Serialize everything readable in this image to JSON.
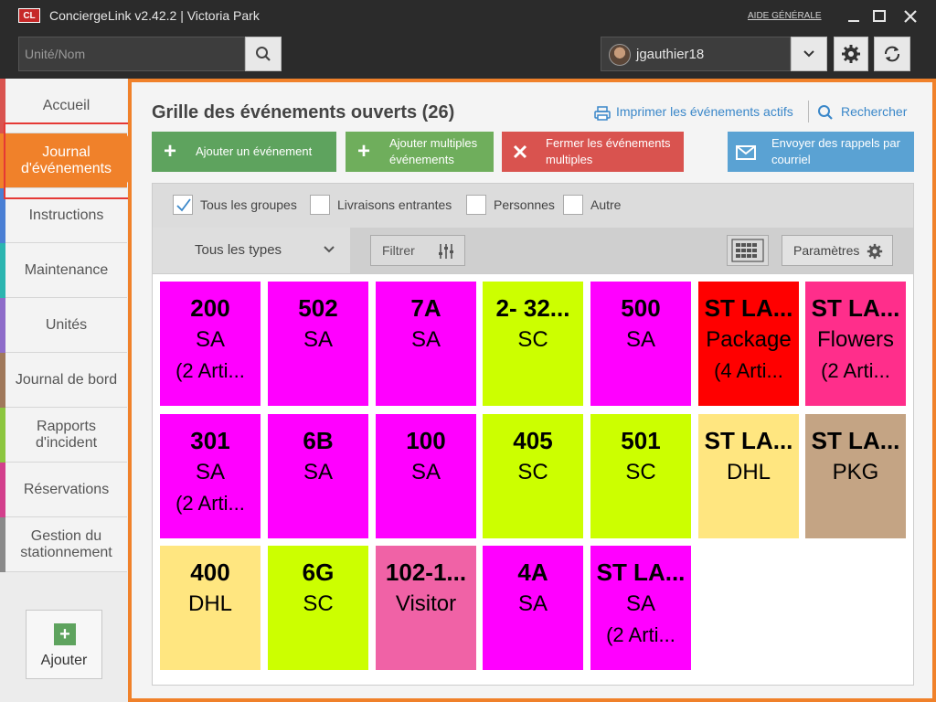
{
  "window": {
    "logo": "CL",
    "title": "ConciergeLink v2.42.2 | Victoria Park",
    "help": "AIDE GÉNÉRALE"
  },
  "search": {
    "placeholder": "Unité/Nom"
  },
  "user": {
    "name": "jgauthier18"
  },
  "sidebar": {
    "items": [
      {
        "label": "Accueil",
        "stripe": "#d9534f"
      },
      {
        "label": "Journal d'événements",
        "stripe": "#f0812a"
      },
      {
        "label": "Instructions",
        "stripe": "#4a7fd4"
      },
      {
        "label": "Maintenance",
        "stripe": "#2bb5b0"
      },
      {
        "label": "Unités",
        "stripe": "#8e6cc9"
      },
      {
        "label": "Journal de bord",
        "stripe": "#a0785a"
      },
      {
        "label": "Rapports d'incident",
        "stripe": "#8cc63f"
      },
      {
        "label": "Réservations",
        "stripe": "#d33f8c"
      },
      {
        "label": "Gestion du stationnement",
        "stripe": "#8a8a8a"
      }
    ],
    "add_label": "Ajouter"
  },
  "main": {
    "title": "Grille des événements ouverts (26)",
    "print_link": "Imprimer les événements actifs",
    "search_link": "Rechercher",
    "actions": {
      "add_event": "Ajouter un événement",
      "add_multiple": "Ajouter multiples événements",
      "close_multiple": "Fermer les événements multiples",
      "send_reminders": "Envoyer des rappels par courriel"
    },
    "filters": {
      "all_groups": "Tous les groupes",
      "incoming": "Livraisons entrantes",
      "persons": "Personnes",
      "other": "Autre",
      "type_select": "Tous les types",
      "filter_btn": "Filtrer",
      "params_btn": "Paramètres"
    },
    "tiles": [
      {
        "unit": "200",
        "type": "SA",
        "count": "(2 Arti...",
        "color": "#ff00ff"
      },
      {
        "unit": "502",
        "type": "SA",
        "count": "",
        "color": "#ff00ff"
      },
      {
        "unit": "7A",
        "type": "SA",
        "count": "",
        "color": "#ff00ff"
      },
      {
        "unit": "2- 32...",
        "type": "SC",
        "count": "",
        "color": "#ccff00"
      },
      {
        "unit": "500",
        "type": "SA",
        "count": "",
        "color": "#ff00ff"
      },
      {
        "unit": "ST LA...",
        "type": "Package",
        "count": "(4 Arti...",
        "color": "#ff0000"
      },
      {
        "unit": "ST LA...",
        "type": "Flowers",
        "count": "(2 Arti...",
        "color": "#ff2e8b"
      },
      {
        "unit": "301",
        "type": "SA",
        "count": "(2 Arti...",
        "color": "#ff00ff"
      },
      {
        "unit": "6B",
        "type": "SA",
        "count": "",
        "color": "#ff00ff"
      },
      {
        "unit": "100",
        "type": "SA",
        "count": "",
        "color": "#ff00ff"
      },
      {
        "unit": "405",
        "type": "SC",
        "count": "",
        "color": "#ccff00"
      },
      {
        "unit": "501",
        "type": "SC",
        "count": "",
        "color": "#ccff00"
      },
      {
        "unit": "ST LA...",
        "type": "DHL",
        "count": "",
        "color": "#ffe680"
      },
      {
        "unit": "ST LA...",
        "type": "PKG",
        "count": "",
        "color": "#c4a484"
      },
      {
        "unit": "400",
        "type": "DHL",
        "count": "",
        "color": "#ffe680"
      },
      {
        "unit": "6G",
        "type": "SC",
        "count": "",
        "color": "#ccff00"
      },
      {
        "unit": "102-1...",
        "type": "Visitor",
        "count": "",
        "color": "#f062a6"
      },
      {
        "unit": "4A",
        "type": "SA",
        "count": "",
        "color": "#ff00ff"
      },
      {
        "unit": "ST LA...",
        "type": "SA",
        "count": "(2 Arti...",
        "color": "#ff00ff"
      }
    ]
  }
}
